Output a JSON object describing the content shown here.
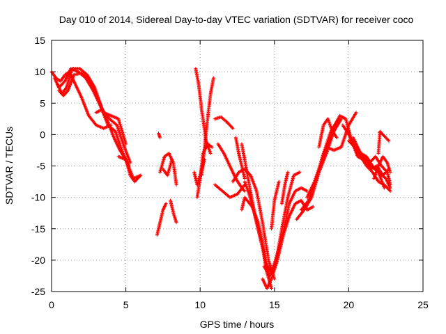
{
  "chart_data": {
    "type": "scatter",
    "title": "Day 010 of 2014, Sidereal Day-to-day VTEC variation (SDTVAR) for receiver coco",
    "xlabel": "GPS time / hours",
    "ylabel": "SDTVAR / TECUs",
    "xlim": [
      0,
      25
    ],
    "ylim": [
      -25,
      15
    ],
    "x_ticks": [
      0,
      5,
      10,
      15,
      20,
      25
    ],
    "y_ticks": [
      15,
      10,
      5,
      0,
      -5,
      -10,
      -15,
      -20,
      -25
    ],
    "grid": true,
    "marker": "+",
    "color": "#ff0000",
    "tracks": [
      {
        "x": [
          0.0,
          0.3,
          0.6,
          0.9,
          1.2,
          1.6,
          2.0,
          2.5,
          3.0,
          3.5,
          4.0
        ],
        "y": [
          10.0,
          9.0,
          8.5,
          9.5,
          10.0,
          8.0,
          6.0,
          3.0,
          1.5,
          1.0,
          1.5
        ]
      },
      {
        "x": [
          0.2,
          0.5,
          0.9,
          1.3,
          1.8,
          2.3,
          2.8,
          3.3,
          3.8,
          4.3,
          4.8,
          5.2
        ],
        "y": [
          9.0,
          7.5,
          8.5,
          10.5,
          10.0,
          9.0,
          7.0,
          4.5,
          1.5,
          0.5,
          -3.0,
          -5.0
        ]
      },
      {
        "x": [
          0.4,
          0.7,
          1.0,
          1.4,
          1.9,
          2.4,
          2.9,
          3.4,
          3.9,
          4.4,
          4.9,
          5.3
        ],
        "y": [
          8.0,
          6.5,
          7.5,
          10.5,
          10.5,
          9.5,
          7.5,
          4.0,
          2.5,
          1.5,
          -2.0,
          -4.5
        ]
      },
      {
        "x": [
          0.5,
          0.8,
          1.1,
          1.5,
          2.0,
          2.5,
          3.0,
          3.5,
          4.0,
          4.5,
          5.0
        ],
        "y": [
          7.0,
          6.2,
          7.0,
          9.5,
          9.8,
          8.8,
          6.5,
          3.5,
          3.0,
          2.5,
          -1.5
        ]
      },
      {
        "x": [
          3.0,
          3.4,
          3.8,
          4.2,
          4.6,
          5.0,
          5.5,
          6.0
        ],
        "y": [
          3.5,
          4.0,
          2.0,
          -0.5,
          -2.5,
          -4.0,
          -7.0,
          -6.5
        ]
      },
      {
        "x": [
          4.5,
          5.0,
          5.3,
          5.6,
          6.0
        ],
        "y": [
          -3.5,
          -4.0,
          -6.5,
          -7.5,
          -6.5
        ]
      },
      {
        "x": [
          7.2,
          7.3
        ],
        "y": [
          0.2,
          -0.5
        ]
      },
      {
        "x": [
          7.1,
          7.3,
          7.5,
          7.7
        ],
        "y": [
          -16.0,
          -14.0,
          -12.0,
          -11.0
        ]
      },
      {
        "x": [
          7.3,
          7.6,
          7.9,
          8.2,
          8.4
        ],
        "y": [
          -6.0,
          -3.5,
          -3.0,
          -4.5,
          -8.0
        ]
      },
      {
        "x": [
          7.5,
          7.8,
          8.1
        ],
        "y": [
          -5.5,
          -6.5,
          -4.0
        ]
      },
      {
        "x": [
          8.0,
          8.2,
          8.4
        ],
        "y": [
          -10.5,
          -12.5,
          -14.0
        ]
      },
      {
        "x": [
          9.7,
          9.9,
          10.1,
          10.4,
          10.7
        ],
        "y": [
          10.5,
          8.0,
          4.0,
          -1.0,
          -3.0
        ]
      },
      {
        "x": [
          9.8,
          10.0,
          10.2,
          10.5,
          10.8
        ],
        "y": [
          -10.0,
          -7.0,
          -3.0,
          -1.5,
          -2.0
        ]
      },
      {
        "x": [
          10.1,
          10.3,
          10.5,
          10.7,
          10.9
        ],
        "y": [
          -6.5,
          -2.0,
          2.5,
          6.5,
          9.0
        ]
      },
      {
        "x": [
          9.6,
          9.8,
          10.0,
          10.3
        ],
        "y": [
          -6.0,
          -8.0,
          -6.5,
          -4.0
        ]
      },
      {
        "x": [
          11.0,
          11.4,
          11.8,
          12.2
        ],
        "y": [
          2.5,
          2.8,
          2.0,
          1.0
        ]
      },
      {
        "x": [
          11.2,
          11.6,
          12.0,
          12.4,
          12.8,
          13.0
        ],
        "y": [
          -1.5,
          -3.0,
          -5.0,
          -7.0,
          -8.5,
          -9.0
        ]
      },
      {
        "x": [
          11.0,
          11.5,
          12.0,
          12.5,
          13.0
        ],
        "y": [
          -8.0,
          -9.0,
          -10.0,
          -9.5,
          -8.0
        ]
      },
      {
        "x": [
          12.4,
          12.6,
          12.8,
          13.0
        ],
        "y": [
          -0.5,
          -3.0,
          -5.0,
          -7.0
        ]
      },
      {
        "x": [
          12.2,
          12.6,
          13.0,
          13.4,
          13.8,
          14.2,
          14.6,
          15.0
        ],
        "y": [
          -7.5,
          -6.0,
          -5.5,
          -6.5,
          -9.0,
          -14.0,
          -20.0,
          -23.0
        ]
      },
      {
        "x": [
          13.0,
          13.3,
          13.6,
          13.9,
          14.2,
          14.5,
          14.8
        ],
        "y": [
          -7.5,
          -9.5,
          -12.0,
          -15.0,
          -18.0,
          -22.0,
          -24.5
        ]
      },
      {
        "x": [
          12.8,
          13.0,
          13.5,
          13.9,
          14.1,
          14.4,
          14.7
        ],
        "y": [
          -12.0,
          -10.0,
          -11.5,
          -14.0,
          -16.0,
          -20.0,
          -23.5
        ]
      },
      {
        "x": [
          14.2,
          14.5,
          14.8,
          15.2,
          15.6,
          16.0,
          16.4,
          16.8,
          17.2,
          17.6
        ],
        "y": [
          -23.0,
          -24.5,
          -23.0,
          -20.0,
          -16.0,
          -13.0,
          -11.0,
          -10.5,
          -12.0,
          -11.5
        ]
      },
      {
        "x": [
          14.3,
          14.7,
          15.1,
          15.5,
          15.9,
          16.3,
          16.7
        ],
        "y": [
          -21.0,
          -22.5,
          -20.5,
          -15.0,
          -10.0,
          -6.5,
          -6.0
        ]
      },
      {
        "x": [
          14.4,
          14.8,
          15.2,
          15.6,
          16.0,
          16.4,
          16.8,
          17.2
        ],
        "y": [
          -20.5,
          -22.0,
          -19.0,
          -15.5,
          -11.0,
          -9.0,
          -8.5,
          -9.0
        ]
      },
      {
        "x": [
          14.8,
          15.0,
          15.3
        ],
        "y": [
          -15.0,
          -10.5,
          -7.5
        ]
      },
      {
        "x": [
          15.5,
          15.7,
          15.9
        ],
        "y": [
          -11.0,
          -8.0,
          -6.0
        ]
      },
      {
        "x": [
          12.8,
          13.0,
          13.3,
          13.7,
          14.1
        ],
        "y": [
          -1.5,
          -4.0,
          -8.0,
          -13.0,
          -17.0
        ]
      },
      {
        "x": [
          16.5,
          17.0,
          17.5,
          18.0,
          18.5,
          19.0,
          19.5
        ],
        "y": [
          -13.5,
          -12.0,
          -10.0,
          -6.0,
          -3.0,
          0.5,
          2.5
        ]
      },
      {
        "x": [
          16.8,
          17.3,
          17.8,
          18.3,
          18.8,
          19.3
        ],
        "y": [
          -12.0,
          -10.5,
          -7.0,
          -3.0,
          0.5,
          2.5
        ]
      },
      {
        "x": [
          17.2,
          17.7,
          18.2,
          18.7,
          19.2
        ],
        "y": [
          -10.0,
          -7.5,
          -4.0,
          -1.0,
          2.0
        ]
      },
      {
        "x": [
          18.0,
          18.3,
          18.6,
          18.9,
          19.2
        ],
        "y": [
          -2.0,
          1.5,
          2.5,
          0.5,
          -0.5
        ]
      },
      {
        "x": [
          18.5,
          19.0,
          19.5,
          20.0,
          20.5
        ],
        "y": [
          -2.0,
          -2.5,
          -2.0,
          1.5,
          3.5
        ]
      },
      {
        "x": [
          19.0,
          19.4,
          19.8,
          20.2,
          20.6,
          21.0,
          21.5,
          22.0,
          22.5,
          22.8
        ],
        "y": [
          1.0,
          3.0,
          2.5,
          -1.0,
          -3.5,
          -4.0,
          -5.0,
          -6.0,
          -7.0,
          -8.5
        ]
      },
      {
        "x": [
          19.6,
          20.0,
          20.4,
          20.8,
          21.2,
          21.6,
          22.0,
          22.4,
          22.8
        ],
        "y": [
          1.5,
          0.0,
          -2.0,
          -3.5,
          -5.0,
          -6.0,
          -7.5,
          -8.0,
          -9.0
        ]
      },
      {
        "x": [
          20.0,
          20.4,
          20.8,
          21.2,
          21.6,
          22.0,
          22.4
        ],
        "y": [
          -1.0,
          -2.0,
          -3.0,
          -3.5,
          -5.0,
          -6.0,
          -8.5
        ]
      },
      {
        "x": [
          20.3,
          20.7,
          21.1,
          21.5,
          21.9,
          22.3,
          22.7
        ],
        "y": [
          -0.5,
          -2.5,
          -4.0,
          -5.5,
          -5.0,
          -6.5,
          -5.5
        ]
      },
      {
        "x": [
          21.0,
          21.4,
          21.8,
          22.2,
          22.6,
          22.8
        ],
        "y": [
          -3.5,
          -4.5,
          -3.5,
          -5.0,
          -6.0,
          -8.0
        ]
      },
      {
        "x": [
          22.0,
          22.1,
          22.3,
          22.5,
          22.7
        ],
        "y": [
          -3.0,
          0.5,
          0.0,
          -0.5,
          -1.0
        ]
      },
      {
        "x": [
          21.7,
          22.0,
          22.3,
          22.6,
          22.8
        ],
        "y": [
          -7.0,
          -5.0,
          -3.5,
          -4.5,
          -6.0
        ]
      }
    ]
  }
}
